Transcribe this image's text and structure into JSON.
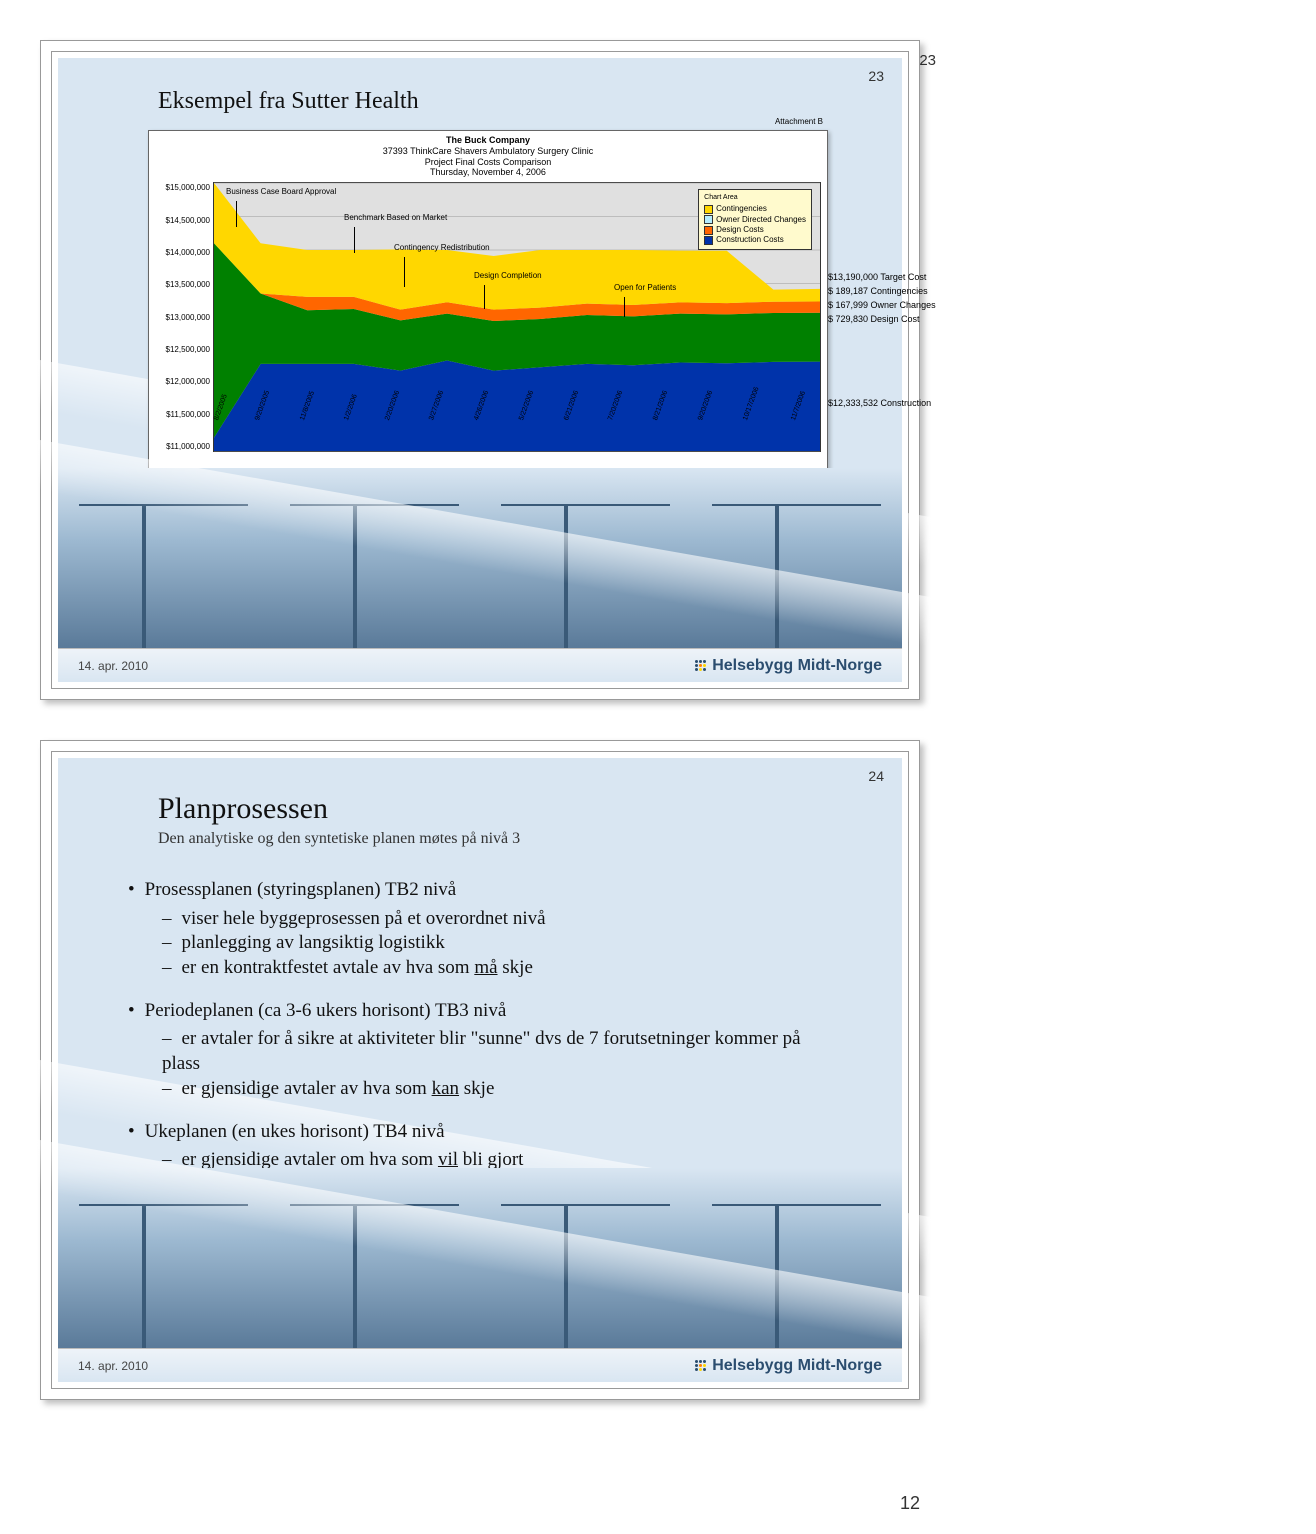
{
  "doc": {
    "page_top_number": "23",
    "page_bottom_number": "12"
  },
  "slide1": {
    "page_number": "23",
    "title": "Eksempel fra Sutter Health",
    "footer_date": "14. apr. 2010",
    "logo_text": "Helsebygg Midt-Norge",
    "attachment": "Attachment B",
    "chart": {
      "type": "area",
      "title_lines": [
        "The Buck Company",
        "37393 ThinkCare Shavers Ambulatory Surgery Clinic",
        "Project Final Costs Comparison",
        "Thursday, November 4, 2006"
      ],
      "legend_header": "Chart Area",
      "legend": [
        {
          "label": "Contingencies",
          "color": "#ffd700"
        },
        {
          "label": "Owner Directed Changes",
          "color": "#b3ecff"
        },
        {
          "label": "Design Costs",
          "color": "#ff6600"
        },
        {
          "label": "Construction Costs",
          "color": "#0033aa"
        }
      ],
      "y_ticks": [
        "$15,000,000",
        "$14,500,000",
        "$14,000,000",
        "$13,500,000",
        "$13,000,000",
        "$12,500,000",
        "$12,000,000",
        "$11,500,000",
        "$11,000,000"
      ],
      "x_ticks": [
        "8/2/2005",
        "9/20/2005",
        "11/8/2005",
        "1/2/2006",
        "2/20/2006",
        "3/27/2006",
        "4/26/2006",
        "5/22/2006",
        "6/21/2006",
        "7/20/2006",
        "8/21/2006",
        "9/20/2006",
        "10/17/2006",
        "11/7/2006"
      ],
      "annotations": [
        "Business Case Board Approval",
        "Benchmark Based on Market",
        "Contingency Redistribution",
        "Design Completion",
        "Open for Patients"
      ],
      "side_values": [
        "$13,190,000  Target Cost",
        "$   189,187  Contingencies",
        "$   167,999  Owner Changes",
        "$   729,830  Design Cost",
        "$12,333,532  Construction"
      ],
      "series": {
        "construction": [
          11200000,
          12300000,
          12300000,
          12300000,
          12200000,
          12350000,
          12200000,
          12250000,
          12300000,
          12280000,
          12320000,
          12310000,
          12330000,
          12333532
        ],
        "design": [
          2900000,
          1050000,
          800000,
          820000,
          750000,
          700000,
          740000,
          720000,
          730000,
          730000,
          730000,
          730000,
          730000,
          729830
        ],
        "owner": [
          0,
          0,
          200000,
          180000,
          160000,
          170000,
          170000,
          170000,
          170000,
          170000,
          168000,
          168000,
          168000,
          167999
        ],
        "contingencies": [
          900000,
          750000,
          700000,
          700000,
          900000,
          780000,
          800000,
          860000,
          800000,
          820000,
          772000,
          780000,
          180000,
          189187
        ]
      },
      "ylim": [
        11000000,
        15000000
      ],
      "background_color": "#e0e0e0",
      "grid_color": "#999999"
    }
  },
  "slide2": {
    "page_number": "24",
    "title": "Planprosessen",
    "subtitle": "Den analytiske og den syntetiske planen møtes på nivå 3",
    "footer_date": "14. apr. 2010",
    "logo_text": "Helsebygg Midt-Norge",
    "bullets": [
      {
        "text": "Prosessplanen (styringsplanen) TB2 nivå",
        "sub": [
          {
            "text": "viser hele byggeprosessen på et overordnet nivå"
          },
          {
            "text": "planlegging av langsiktig logistikk"
          },
          {
            "pre": "er en kontraktfestet avtale av hva som ",
            "u": "må",
            "post": " skje"
          }
        ]
      },
      {
        "text": "Periodeplanen (ca 3-6 ukers horisont) TB3 nivå",
        "sub": [
          {
            "text": "er avtaler for å sikre at aktiviteter blir \"sunne\" dvs de 7 forutsetninger kommer på plass"
          },
          {
            "pre": "er gjensidige avtaler av hva som ",
            "u": "kan",
            "post": " skje"
          }
        ]
      },
      {
        "text": "Ukeplanen (en ukes horisont)  TB4 nivå",
        "sub": [
          {
            "pre": "er gjensidige avtaler om hva som ",
            "u": "vil",
            "post": " bli gjort"
          }
        ]
      }
    ]
  }
}
